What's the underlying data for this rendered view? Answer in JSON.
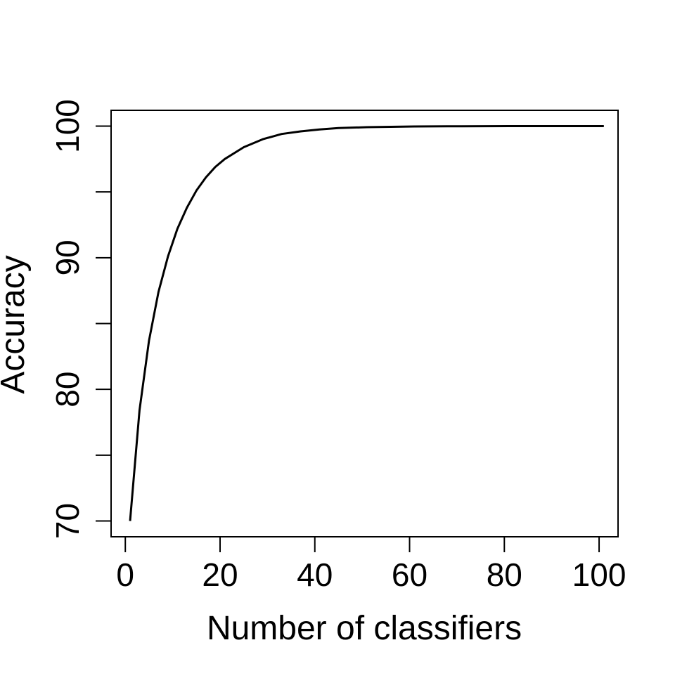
{
  "chart_data": {
    "type": "line",
    "title": "",
    "xlabel": "Number of classifiers",
    "ylabel": "Accuracy",
    "xlim": [
      -3,
      104
    ],
    "ylim": [
      68.8,
      101.2
    ],
    "xticks": [
      0,
      20,
      40,
      60,
      80,
      100
    ],
    "xtick_labels": [
      "0",
      "20",
      "40",
      "60",
      "80",
      "100"
    ],
    "yticks": [
      70,
      75,
      80,
      85,
      90,
      95,
      100
    ],
    "ytick_labels": [
      "70",
      "",
      "80",
      "",
      "90",
      "",
      "100"
    ],
    "grid": false,
    "legend": "none",
    "line_color": "#000000",
    "series": [
      {
        "x": [
          1,
          3,
          5,
          7,
          9,
          11,
          13,
          15,
          17,
          19,
          21,
          25,
          29,
          33,
          37,
          41,
          45,
          51,
          61,
          71,
          81,
          91,
          101
        ],
        "values": [
          70.0,
          78.4,
          83.7,
          87.4,
          90.1,
          92.2,
          93.8,
          95.1,
          96.1,
          96.9,
          97.5,
          98.4,
          99.0,
          99.4,
          99.6,
          99.75,
          99.85,
          99.92,
          99.97,
          99.99,
          100.0,
          100.0,
          100.0
        ]
      }
    ]
  }
}
